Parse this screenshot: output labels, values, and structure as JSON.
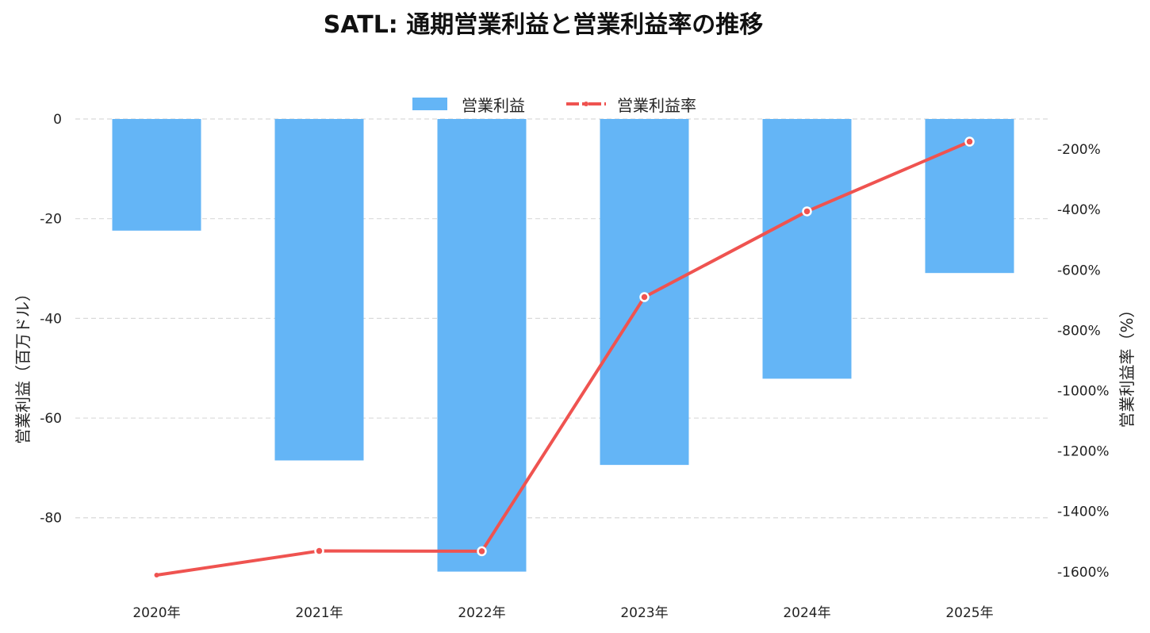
{
  "chart_data": {
    "type": "bar",
    "title": "SATL: 通期営業利益と営業利益率の推移",
    "categories": [
      "2020年",
      "2021年",
      "2022年",
      "2023年",
      "2024年",
      "2025年"
    ],
    "series": [
      {
        "name": "営業利益",
        "type": "bar",
        "axis": "left",
        "color": "#64b5f6",
        "values": [
          -22.4,
          -68.5,
          -90.8,
          -69.4,
          -52.1,
          -30.9
        ]
      },
      {
        "name": "営業利益率",
        "type": "line",
        "axis": "right",
        "color": "#ef5350",
        "values": [
          -1611,
          -1531,
          -1532,
          -690,
          -406,
          -175
        ]
      }
    ],
    "y_left": {
      "label": "営業利益（百万ドル）",
      "lim": [
        -91.5,
        0
      ],
      "ticks": [
        0,
        -20,
        -40,
        -60,
        -80
      ],
      "tick_labels": [
        "0",
        "-20",
        "-40",
        "-60",
        "-80"
      ]
    },
    "y_right": {
      "label": "営業利益率（%）",
      "lim": [
        -1611,
        -100
      ],
      "ticks": [
        -200,
        -400,
        -600,
        -800,
        -1000,
        -1200,
        -1400,
        -1600
      ],
      "tick_labels": [
        "-200%",
        "-400%",
        "-600%",
        "-800%",
        "-1000%",
        "-1200%",
        "-1400%",
        "-1600%"
      ]
    },
    "grid": true,
    "legend": "top-center"
  }
}
